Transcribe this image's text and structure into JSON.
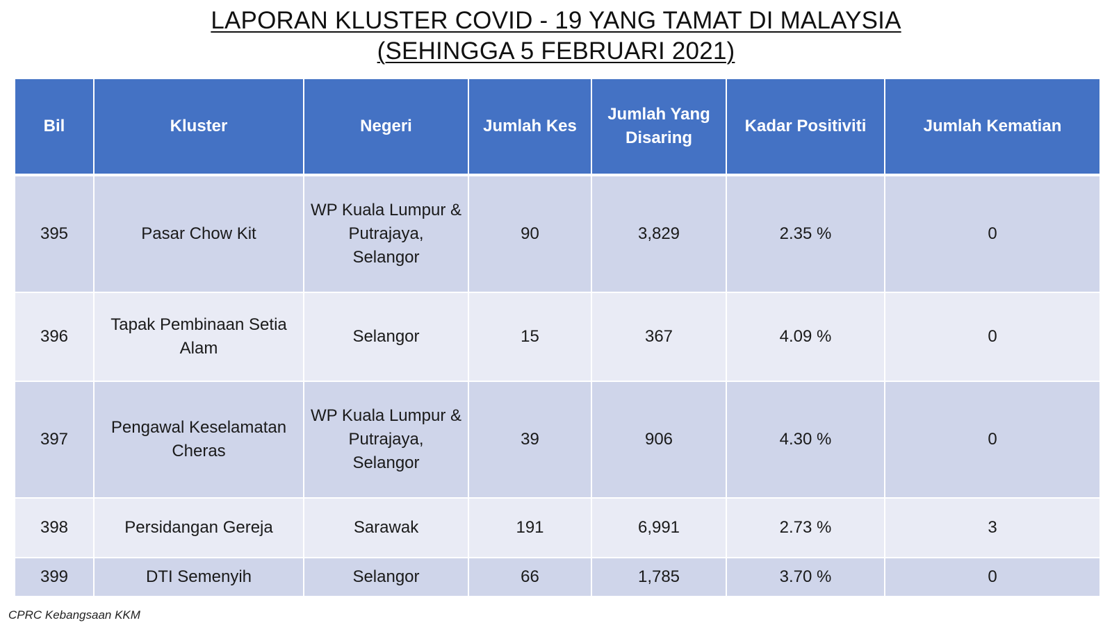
{
  "title": {
    "line1": "LAPORAN KLUSTER COVID - 19 YANG TAMAT DI MALAYSIA",
    "line2": "(SEHINGGA 5 FEBRUARI 2021)"
  },
  "table": {
    "headers": {
      "bil": "Bil",
      "kluster": "Kluster",
      "negeri": "Negeri",
      "jumlah_kes": "Jumlah Kes",
      "jumlah_disaring_1": "Jumlah Yang",
      "jumlah_disaring_2": "Disaring",
      "kadar_positiviti": "Kadar Positiviti",
      "jumlah_kematian": "Jumlah Kematian"
    },
    "rows": [
      {
        "bil": "395",
        "kluster_1": "Pasar Chow Kit",
        "kluster_2": "",
        "negeri_1": "WP Kuala Lumpur &",
        "negeri_2": "Putrajaya,",
        "negeri_3": "Selangor",
        "jumlah_kes": "90",
        "jumlah_disaring": "3,829",
        "kadar_positiviti": "2.35 %",
        "jumlah_kematian": "0"
      },
      {
        "bil": "396",
        "kluster_1": "Tapak Pembinaan Setia",
        "kluster_2": "Alam",
        "negeri_1": "Selangor",
        "negeri_2": "",
        "negeri_3": "",
        "jumlah_kes": "15",
        "jumlah_disaring": "367",
        "kadar_positiviti": "4.09 %",
        "jumlah_kematian": "0"
      },
      {
        "bil": "397",
        "kluster_1": "Pengawal Keselamatan",
        "kluster_2": "Cheras",
        "negeri_1": "WP Kuala Lumpur &",
        "negeri_2": "Putrajaya,",
        "negeri_3": "Selangor",
        "jumlah_kes": "39",
        "jumlah_disaring": "906",
        "kadar_positiviti": "4.30 %",
        "jumlah_kematian": "0"
      },
      {
        "bil": "398",
        "kluster_1": "Persidangan Gereja",
        "kluster_2": "",
        "negeri_1": "Sarawak",
        "negeri_2": "",
        "negeri_3": "",
        "jumlah_kes": "191",
        "jumlah_disaring": "6,991",
        "kadar_positiviti": "2.73 %",
        "jumlah_kematian": "3"
      },
      {
        "bil": "399",
        "kluster_1": "DTI Semenyih",
        "kluster_2": "",
        "negeri_1": "Selangor",
        "negeri_2": "",
        "negeri_3": "",
        "jumlah_kes": "66",
        "jumlah_disaring": "1,785",
        "kadar_positiviti": "3.70 %",
        "jumlah_kematian": "0"
      }
    ]
  },
  "source": "CPRC Kebangsaan KKM",
  "colors": {
    "header_bg": "#4472c4",
    "row_dark": "#cfd5ea",
    "row_light": "#e9ebf5"
  }
}
